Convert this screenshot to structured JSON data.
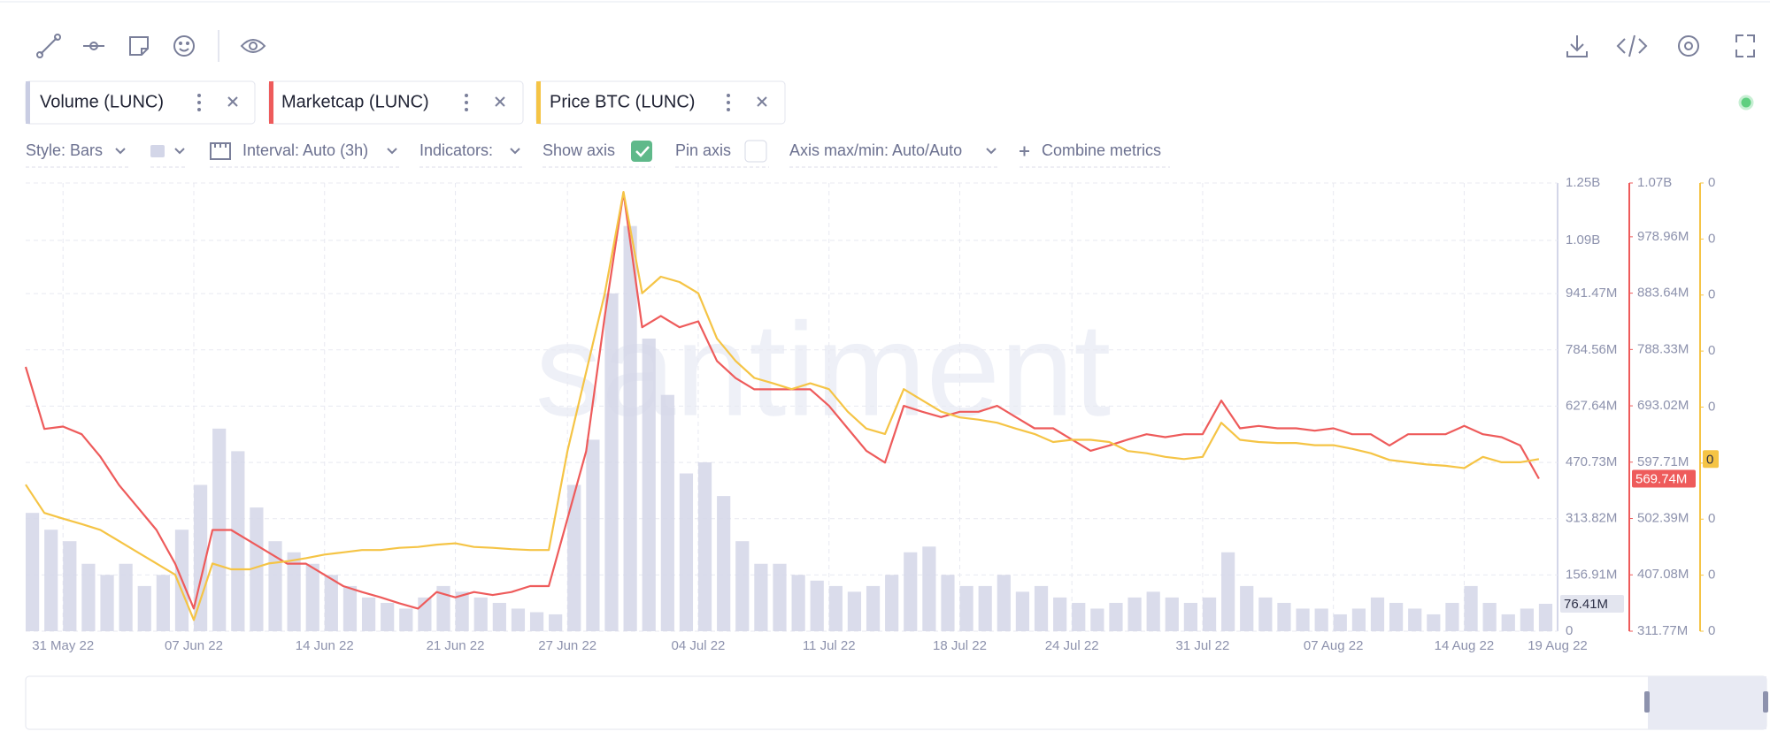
{
  "toolbar": {
    "options": [
      "Style: Bars",
      "Interval: Auto (3h)",
      "Indicators:",
      "Show axis",
      "Pin axis",
      "Axis max/min: Auto/Auto",
      "Combine metrics"
    ],
    "watermark": "santiment"
  },
  "chart_data": {
    "type": "combo",
    "grid": true,
    "x": [
      "2022-05-29",
      "2022-05-30",
      "2022-05-31",
      "2022-06-01",
      "2022-06-02",
      "2022-06-03",
      "2022-06-04",
      "2022-06-05",
      "2022-06-06",
      "2022-06-07",
      "2022-06-08",
      "2022-06-09",
      "2022-06-10",
      "2022-06-11",
      "2022-06-12",
      "2022-06-13",
      "2022-06-14",
      "2022-06-15",
      "2022-06-16",
      "2022-06-17",
      "2022-06-18",
      "2022-06-19",
      "2022-06-20",
      "2022-06-21",
      "2022-06-22",
      "2022-06-23",
      "2022-06-24",
      "2022-06-25",
      "2022-06-26",
      "2022-06-27",
      "2022-06-28",
      "2022-06-29",
      "2022-06-30",
      "2022-07-01",
      "2022-07-02",
      "2022-07-03",
      "2022-07-04",
      "2022-07-05",
      "2022-07-06",
      "2022-07-07",
      "2022-07-08",
      "2022-07-09",
      "2022-07-10",
      "2022-07-11",
      "2022-07-12",
      "2022-07-13",
      "2022-07-14",
      "2022-07-15",
      "2022-07-16",
      "2022-07-17",
      "2022-07-18",
      "2022-07-19",
      "2022-07-20",
      "2022-07-21",
      "2022-07-22",
      "2022-07-23",
      "2022-07-24",
      "2022-07-25",
      "2022-07-26",
      "2022-07-27",
      "2022-07-28",
      "2022-07-29",
      "2022-07-30",
      "2022-07-31",
      "2022-08-01",
      "2022-08-02",
      "2022-08-03",
      "2022-08-04",
      "2022-08-05",
      "2022-08-06",
      "2022-08-07",
      "2022-08-08",
      "2022-08-09",
      "2022-08-10",
      "2022-08-11",
      "2022-08-12",
      "2022-08-13",
      "2022-08-14",
      "2022-08-15",
      "2022-08-16",
      "2022-08-17",
      "2022-08-18"
    ],
    "xlim": [
      "2022-05-29",
      "2022-08-19"
    ],
    "xticks": [
      {
        "value": "2022-05-31",
        "label": "31 May 22"
      },
      {
        "value": "2022-06-07",
        "label": "07 Jun 22"
      },
      {
        "value": "2022-06-14",
        "label": "14 Jun 22"
      },
      {
        "value": "2022-06-21",
        "label": "21 Jun 22"
      },
      {
        "value": "2022-06-27",
        "label": "27 Jun 22"
      },
      {
        "value": "2022-07-04",
        "label": "04 Jul 22"
      },
      {
        "value": "2022-07-11",
        "label": "11 Jul 22"
      },
      {
        "value": "2022-07-18",
        "label": "18 Jul 22"
      },
      {
        "value": "2022-07-24",
        "label": "24 Jul 22"
      },
      {
        "value": "2022-07-31",
        "label": "31 Jul 22"
      },
      {
        "value": "2022-08-07",
        "label": "07 Aug 22"
      },
      {
        "value": "2022-08-14",
        "label": "14 Aug 22"
      },
      {
        "value": "2022-08-19",
        "label": "19 Aug 22"
      }
    ],
    "ylim": [
      0,
      1250000000
    ],
    "yticks": [
      0,
      {
        "value": 156910000,
        "label": "156.91M"
      },
      {
        "value": 313820000,
        "label": "313.82M"
      },
      {
        "value": 470730000,
        "label": "470.73M"
      },
      {
        "value": 627640000,
        "label": "627.64M"
      },
      {
        "value": 784560000,
        "label": "784.56M"
      },
      {
        "value": 941470000,
        "label": "941.47M"
      },
      {
        "value": 1090000000,
        "label": "1.09B"
      },
      {
        "value": 1250000000,
        "label": "1.25B"
      }
    ],
    "y2lim": [
      311770000,
      1070000000
    ],
    "y2ticks": [
      {
        "value": 311770000,
        "label": "311.77M"
      },
      {
        "value": 407080000,
        "label": "407.08M"
      },
      {
        "value": 502390000,
        "label": "502.39M"
      },
      {
        "value": 597710000,
        "label": "597.71M"
      },
      {
        "value": 693020000,
        "label": "693.02M"
      },
      {
        "value": 788330000,
        "label": "788.33M"
      },
      {
        "value": 883640000,
        "label": "883.64M"
      },
      {
        "value": 978960000,
        "label": "978.96M"
      },
      {
        "value": 1070000000,
        "label": "1.07B"
      }
    ],
    "y3lim": [
      0,
      1e-08
    ],
    "y3ticks": [
      0,
      {
        "value": 1.25e-09,
        "label": "0"
      },
      {
        "value": 2.5e-09,
        "label": "0"
      },
      {
        "value": 3.75e-09,
        "label": "0"
      },
      {
        "value": 5e-09,
        "label": "0"
      },
      {
        "value": 6.25e-09,
        "label": "0"
      },
      {
        "value": 7.5e-09,
        "label": "0"
      },
      {
        "value": 8.75e-09,
        "label": "0"
      },
      {
        "value": 1e-08,
        "label": "0"
      }
    ],
    "series": [
      {
        "name": "Volume (LUNC)",
        "type": "bar",
        "axis": "y",
        "color": "#d3d6e8",
        "last_label": "76.41M",
        "values": [
          330000000,
          283000000,
          251000000,
          188000000,
          157000000,
          188000000,
          126000000,
          157000000,
          283000000,
          408000000,
          565000000,
          502000000,
          345000000,
          251000000,
          220000000,
          188000000,
          157000000,
          126000000,
          94000000,
          79000000,
          63000000,
          94000000,
          126000000,
          110000000,
          94000000,
          79000000,
          63000000,
          53000000,
          47000000,
          408000000,
          534000000,
          942000000,
          1130000000,
          816000000,
          659000000,
          440000000,
          471000000,
          377000000,
          251000000,
          188000000,
          188000000,
          157000000,
          141000000,
          126000000,
          110000000,
          126000000,
          157000000,
          220000000,
          236000000,
          157000000,
          126000000,
          126000000,
          157000000,
          110000000,
          126000000,
          94000000,
          79000000,
          63000000,
          79000000,
          94000000,
          110000000,
          94000000,
          79000000,
          94000000,
          220000000,
          126000000,
          94000000,
          79000000,
          63000000,
          63000000,
          47000000,
          63000000,
          94000000,
          79000000,
          63000000,
          47000000,
          79000000,
          126000000,
          79000000,
          47000000,
          63000000,
          76410000
        ]
      },
      {
        "name": "Marketcap (LUNC)",
        "type": "line",
        "axis": "y2",
        "color": "#ee5b5b",
        "last_label": "569.74M",
        "values": [
          759000000,
          654000000,
          658000000,
          645000000,
          607000000,
          559000000,
          521000000,
          483000000,
          426000000,
          350000000,
          483000000,
          483000000,
          464000000,
          445000000,
          426000000,
          426000000,
          407000000,
          388000000,
          378000000,
          369000000,
          359000000,
          350000000,
          378000000,
          369000000,
          378000000,
          373000000,
          378000000,
          388000000,
          388000000,
          502000000,
          616000000,
          845000000,
          1054000000,
          826000000,
          845000000,
          826000000,
          836000000,
          769000000,
          740000000,
          721000000,
          721000000,
          721000000,
          721000000,
          693000000,
          655000000,
          617000000,
          597000000,
          693000000,
          683000000,
          674000000,
          683000000,
          683000000,
          693000000,
          674000000,
          655000000,
          655000000,
          636000000,
          617000000,
          626000000,
          636000000,
          645000000,
          640000000,
          645000000,
          645000000,
          702000000,
          655000000,
          659000000,
          655000000,
          655000000,
          651000000,
          655000000,
          645000000,
          645000000,
          626000000,
          645000000,
          645000000,
          645000000,
          659000000,
          645000000,
          640000000,
          626000000,
          569740000
        ]
      },
      {
        "name": "Price BTC (LUNC)",
        "type": "line",
        "axis": "y3",
        "color": "#f5c445",
        "last_label": "0",
        "values": [
          3.27e-09,
          2.64e-09,
          2.51e-09,
          2.39e-09,
          2.26e-09,
          2.01e-09,
          1.76e-09,
          1.51e-09,
          1.26e-09,
          2.5e-10,
          1.51e-09,
          1.38e-09,
          1.38e-09,
          1.51e-09,
          1.56e-09,
          1.63e-09,
          1.71e-09,
          1.76e-09,
          1.81e-09,
          1.81e-09,
          1.86e-09,
          1.88e-09,
          1.93e-09,
          1.96e-09,
          1.88e-09,
          1.86e-09,
          1.83e-09,
          1.81e-09,
          1.81e-09,
          4.02e-09,
          5.78e-09,
          7.54e-09,
          9.8e-09,
          7.54e-09,
          7.91e-09,
          7.79e-09,
          7.54e-09,
          6.53e-09,
          6.03e-09,
          5.65e-09,
          5.53e-09,
          5.4e-09,
          5.53e-09,
          5.4e-09,
          4.9e-09,
          4.52e-09,
          4.4e-09,
          5.4e-09,
          5.15e-09,
          4.9e-09,
          4.77e-09,
          4.72e-09,
          4.65e-09,
          4.52e-09,
          4.4e-09,
          4.22e-09,
          4.27e-09,
          4.27e-09,
          4.22e-09,
          4.02e-09,
          3.97e-09,
          3.89e-09,
          3.84e-09,
          3.89e-09,
          4.65e-09,
          4.27e-09,
          4.22e-09,
          4.2e-09,
          4.2e-09,
          4.15e-09,
          4.15e-09,
          4.07e-09,
          3.97e-09,
          3.82e-09,
          3.77e-09,
          3.72e-09,
          3.69e-09,
          3.64e-09,
          3.89e-09,
          3.77e-09,
          3.77e-09,
          3.84e-09
        ]
      }
    ]
  }
}
